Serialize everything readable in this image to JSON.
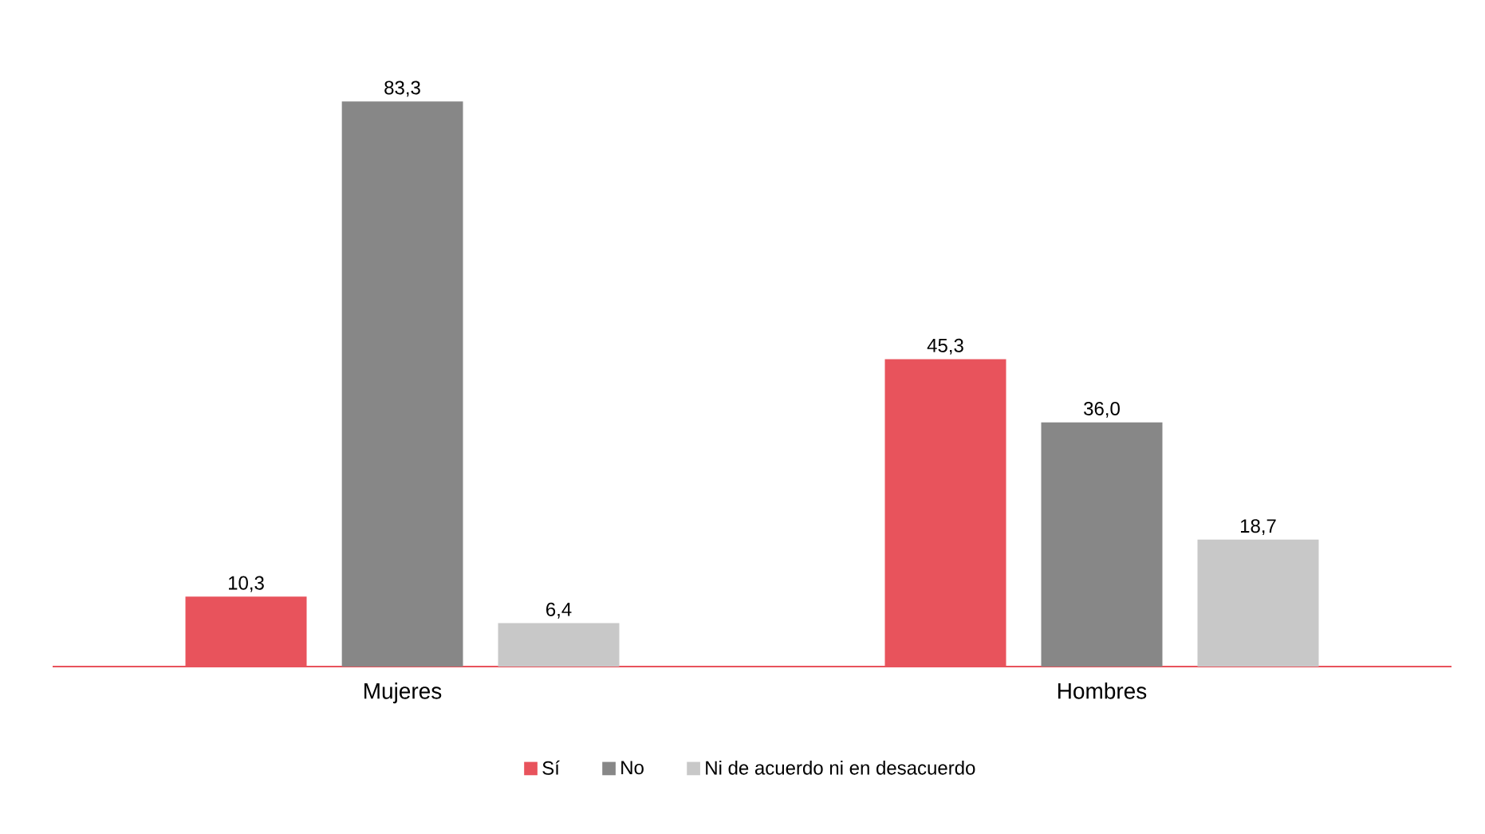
{
  "chart_data": {
    "type": "bar",
    "categories": [
      "Mujeres",
      "Hombres"
    ],
    "series": [
      {
        "name": "Sí",
        "color": "#e8535c",
        "values": [
          10.3,
          45.3
        ],
        "value_labels": [
          "10,3",
          "45,3"
        ]
      },
      {
        "name": "No",
        "color": "#878787",
        "values": [
          83.3,
          36.0
        ],
        "value_labels": [
          "83,3",
          "36,0"
        ]
      },
      {
        "name": "Ni de acuerdo ni en desacuerdo",
        "color": "#c8c8c8",
        "values": [
          6.4,
          18.7
        ],
        "value_labels": [
          "6,4",
          "18,7"
        ]
      }
    ],
    "tick_labels": "x",
    "legend": "bottom"
  }
}
